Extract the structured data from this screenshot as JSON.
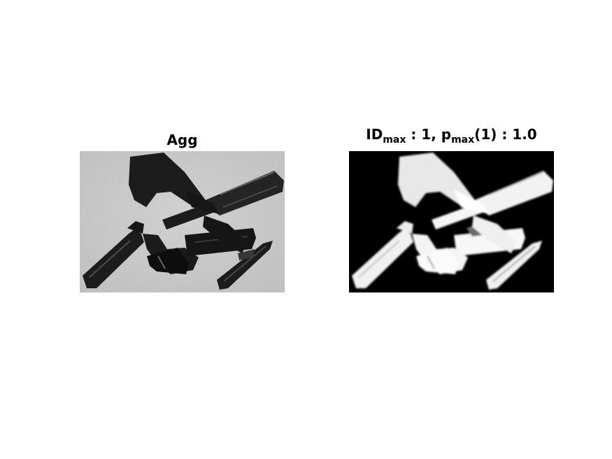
{
  "figure": {
    "left_panel": {
      "title": "Agg",
      "image_description": "grayscale photo of clustered dark crystal shards"
    },
    "right_panel": {
      "title_prefix": "ID",
      "title_sub1": "max",
      "title_mid": " : 1, p",
      "title_sub2": "max",
      "title_suffix": "(1) : 1.0",
      "image_description": "segmentation mask: white shards on black"
    }
  }
}
